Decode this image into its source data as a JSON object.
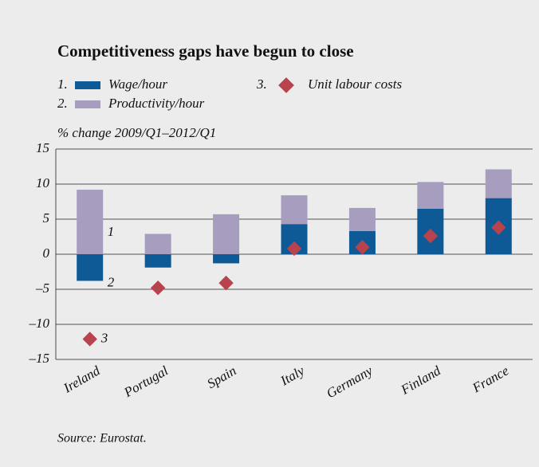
{
  "chart_data": {
    "type": "bar",
    "title": "Competitiveness gaps have begun to close",
    "y_label": "% change 2009/Q1–2012/Q1",
    "source": "Source: Eurostat.",
    "categories": [
      "Ireland",
      "Portugal",
      "Spain",
      "Italy",
      "Germany",
      "Finland",
      "France"
    ],
    "series": [
      {
        "name": "Wage/hour",
        "number": "1.",
        "color": "#0d5a96",
        "kind": "bar",
        "values": [
          -3.8,
          -1.9,
          -1.3,
          4.3,
          3.3,
          6.5,
          8.0
        ]
      },
      {
        "name": "Productivity/hour",
        "number": "2.",
        "color": "#a79dbf",
        "kind": "bar",
        "values": [
          9.2,
          2.9,
          5.7,
          4.1,
          3.3,
          3.8,
          4.1
        ]
      },
      {
        "name": "Unit labour costs",
        "number": "3.",
        "color": "#b8434c",
        "kind": "diamond",
        "values": [
          -12.1,
          -4.8,
          -4.1,
          0.8,
          1.0,
          2.6,
          3.8
        ]
      }
    ],
    "annotations": [
      "1",
      "2",
      "3"
    ],
    "ylim": [
      -15,
      15
    ],
    "yticks": [
      15,
      10,
      5,
      0,
      {
        "value": -5,
        "label": "–5"
      },
      {
        "value": -10,
        "label": "–10"
      },
      {
        "value": -15,
        "label": "–15"
      }
    ],
    "grid": true
  }
}
